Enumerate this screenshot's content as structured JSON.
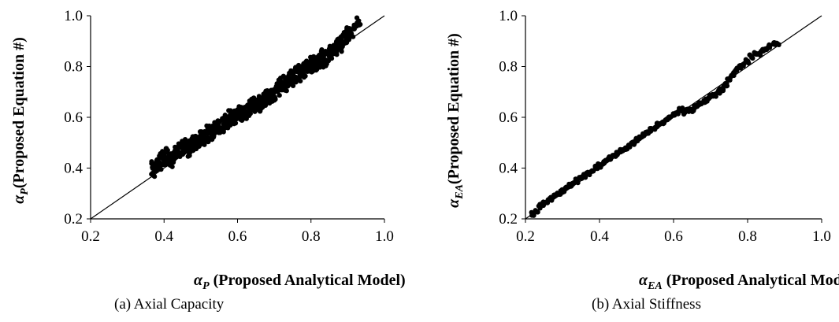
{
  "chart_data": [
    {
      "type": "scatter",
      "caption": "(a) Axial Capacity",
      "xlabel": {
        "symbol": "α",
        "sub": "P",
        "text": " (Proposed Analytical Model)"
      },
      "ylabel": {
        "symbol": "α",
        "sub": "P",
        "text": "(Proposed Equation #)"
      },
      "xlim": [
        0.2,
        1.0
      ],
      "ylim": [
        0.2,
        1.0
      ],
      "xticks": [
        "0.2",
        "0.4",
        "0.6",
        "0.8",
        "1.0"
      ],
      "yticks": [
        "0.2",
        "0.4",
        "0.6",
        "0.8",
        "1.0"
      ],
      "reference_line": {
        "from": [
          0.2,
          0.2
        ],
        "to": [
          1.0,
          1.0
        ]
      },
      "x_range": [
        0.37,
        0.93
      ],
      "points": [
        [
          0.37,
          0.38
        ],
        [
          0.37,
          0.41
        ],
        [
          0.38,
          0.4
        ],
        [
          0.38,
          0.43
        ],
        [
          0.39,
          0.41
        ],
        [
          0.39,
          0.44
        ],
        [
          0.4,
          0.42
        ],
        [
          0.4,
          0.45
        ],
        [
          0.41,
          0.43
        ],
        [
          0.41,
          0.46
        ],
        [
          0.42,
          0.42
        ],
        [
          0.42,
          0.45
        ],
        [
          0.43,
          0.44
        ],
        [
          0.43,
          0.47
        ],
        [
          0.44,
          0.45
        ],
        [
          0.44,
          0.48
        ],
        [
          0.45,
          0.46
        ],
        [
          0.45,
          0.49
        ],
        [
          0.46,
          0.47
        ],
        [
          0.46,
          0.5
        ],
        [
          0.47,
          0.46
        ],
        [
          0.47,
          0.49
        ],
        [
          0.48,
          0.48
        ],
        [
          0.48,
          0.51
        ],
        [
          0.49,
          0.49
        ],
        [
          0.49,
          0.52
        ],
        [
          0.5,
          0.5
        ],
        [
          0.5,
          0.53
        ],
        [
          0.51,
          0.51
        ],
        [
          0.51,
          0.54
        ],
        [
          0.52,
          0.52
        ],
        [
          0.52,
          0.55
        ],
        [
          0.53,
          0.53
        ],
        [
          0.53,
          0.56
        ],
        [
          0.54,
          0.54
        ],
        [
          0.54,
          0.57
        ],
        [
          0.55,
          0.55
        ],
        [
          0.55,
          0.58
        ],
        [
          0.56,
          0.56
        ],
        [
          0.56,
          0.59
        ],
        [
          0.57,
          0.57
        ],
        [
          0.57,
          0.6
        ],
        [
          0.58,
          0.58
        ],
        [
          0.58,
          0.61
        ],
        [
          0.59,
          0.59
        ],
        [
          0.59,
          0.62
        ],
        [
          0.6,
          0.6
        ],
        [
          0.6,
          0.63
        ],
        [
          0.61,
          0.6
        ],
        [
          0.61,
          0.63
        ],
        [
          0.62,
          0.61
        ],
        [
          0.62,
          0.64
        ],
        [
          0.63,
          0.62
        ],
        [
          0.63,
          0.65
        ],
        [
          0.64,
          0.63
        ],
        [
          0.64,
          0.66
        ],
        [
          0.65,
          0.64
        ],
        [
          0.65,
          0.66
        ],
        [
          0.66,
          0.64
        ],
        [
          0.66,
          0.67
        ],
        [
          0.67,
          0.65
        ],
        [
          0.67,
          0.68
        ],
        [
          0.68,
          0.66
        ],
        [
          0.68,
          0.69
        ],
        [
          0.69,
          0.67
        ],
        [
          0.69,
          0.7
        ],
        [
          0.7,
          0.68
        ],
        [
          0.7,
          0.71
        ],
        [
          0.71,
          0.7
        ],
        [
          0.71,
          0.73
        ],
        [
          0.72,
          0.71
        ],
        [
          0.72,
          0.74
        ],
        [
          0.73,
          0.72
        ],
        [
          0.73,
          0.75
        ],
        [
          0.74,
          0.73
        ],
        [
          0.74,
          0.76
        ],
        [
          0.75,
          0.74
        ],
        [
          0.75,
          0.77
        ],
        [
          0.76,
          0.75
        ],
        [
          0.76,
          0.78
        ],
        [
          0.77,
          0.76
        ],
        [
          0.77,
          0.79
        ],
        [
          0.78,
          0.77
        ],
        [
          0.78,
          0.8
        ],
        [
          0.79,
          0.78
        ],
        [
          0.79,
          0.81
        ],
        [
          0.8,
          0.79
        ],
        [
          0.8,
          0.82
        ],
        [
          0.81,
          0.8
        ],
        [
          0.81,
          0.83
        ],
        [
          0.82,
          0.8
        ],
        [
          0.82,
          0.84
        ],
        [
          0.83,
          0.81
        ],
        [
          0.83,
          0.85
        ],
        [
          0.84,
          0.82
        ],
        [
          0.84,
          0.86
        ],
        [
          0.85,
          0.84
        ],
        [
          0.85,
          0.87
        ],
        [
          0.86,
          0.85
        ],
        [
          0.86,
          0.88
        ],
        [
          0.87,
          0.86
        ],
        [
          0.87,
          0.89
        ],
        [
          0.88,
          0.87
        ],
        [
          0.88,
          0.9
        ],
        [
          0.89,
          0.89
        ],
        [
          0.89,
          0.92
        ],
        [
          0.9,
          0.91
        ],
        [
          0.9,
          0.94
        ],
        [
          0.91,
          0.93
        ],
        [
          0.92,
          0.96
        ],
        [
          0.93,
          0.98
        ]
      ]
    },
    {
      "type": "scatter",
      "caption": "(b) Axial Stiffness",
      "xlabel": {
        "symbol": "α",
        "sub": "EA",
        "text": " (Proposed Analytical Model)"
      },
      "ylabel": {
        "symbol": "α",
        "sub": "EA",
        "text": "(Proposed Equation #)"
      },
      "xlim": [
        0.2,
        1.0
      ],
      "ylim": [
        0.2,
        1.0
      ],
      "xticks": [
        "0.2",
        "0.4",
        "0.6",
        "0.8",
        "1.0"
      ],
      "yticks": [
        "0.2",
        "0.4",
        "0.6",
        "0.8",
        "1.0"
      ],
      "reference_line": {
        "from": [
          0.2,
          0.2
        ],
        "to": [
          1.0,
          1.0
        ]
      },
      "x_range": [
        0.22,
        0.88
      ],
      "points": [
        [
          0.22,
          0.22
        ],
        [
          0.23,
          0.23
        ],
        [
          0.24,
          0.25
        ],
        [
          0.25,
          0.26
        ],
        [
          0.26,
          0.27
        ],
        [
          0.27,
          0.28
        ],
        [
          0.28,
          0.29
        ],
        [
          0.29,
          0.3
        ],
        [
          0.3,
          0.31
        ],
        [
          0.31,
          0.32
        ],
        [
          0.32,
          0.33
        ],
        [
          0.33,
          0.34
        ],
        [
          0.34,
          0.35
        ],
        [
          0.35,
          0.36
        ],
        [
          0.36,
          0.37
        ],
        [
          0.37,
          0.38
        ],
        [
          0.38,
          0.39
        ],
        [
          0.39,
          0.4
        ],
        [
          0.4,
          0.41
        ],
        [
          0.41,
          0.42
        ],
        [
          0.42,
          0.43
        ],
        [
          0.43,
          0.44
        ],
        [
          0.44,
          0.45
        ],
        [
          0.45,
          0.46
        ],
        [
          0.46,
          0.47
        ],
        [
          0.47,
          0.48
        ],
        [
          0.48,
          0.49
        ],
        [
          0.49,
          0.5
        ],
        [
          0.5,
          0.51
        ],
        [
          0.51,
          0.52
        ],
        [
          0.52,
          0.53
        ],
        [
          0.53,
          0.54
        ],
        [
          0.54,
          0.55
        ],
        [
          0.55,
          0.56
        ],
        [
          0.56,
          0.57
        ],
        [
          0.57,
          0.58
        ],
        [
          0.58,
          0.59
        ],
        [
          0.59,
          0.6
        ],
        [
          0.6,
          0.61
        ],
        [
          0.61,
          0.62
        ],
        [
          0.62,
          0.63
        ],
        [
          0.63,
          0.62
        ],
        [
          0.64,
          0.63
        ],
        [
          0.65,
          0.63
        ],
        [
          0.66,
          0.64
        ],
        [
          0.67,
          0.65
        ],
        [
          0.68,
          0.66
        ],
        [
          0.69,
          0.67
        ],
        [
          0.7,
          0.68
        ],
        [
          0.71,
          0.69
        ],
        [
          0.72,
          0.7
        ],
        [
          0.73,
          0.71
        ],
        [
          0.74,
          0.73
        ],
        [
          0.75,
          0.75
        ],
        [
          0.76,
          0.77
        ],
        [
          0.77,
          0.79
        ],
        [
          0.78,
          0.8
        ],
        [
          0.79,
          0.81
        ],
        [
          0.8,
          0.82
        ],
        [
          0.81,
          0.84
        ],
        [
          0.82,
          0.85
        ],
        [
          0.83,
          0.85
        ],
        [
          0.84,
          0.86
        ],
        [
          0.85,
          0.87
        ],
        [
          0.86,
          0.88
        ],
        [
          0.87,
          0.89
        ],
        [
          0.88,
          0.89
        ]
      ]
    }
  ]
}
